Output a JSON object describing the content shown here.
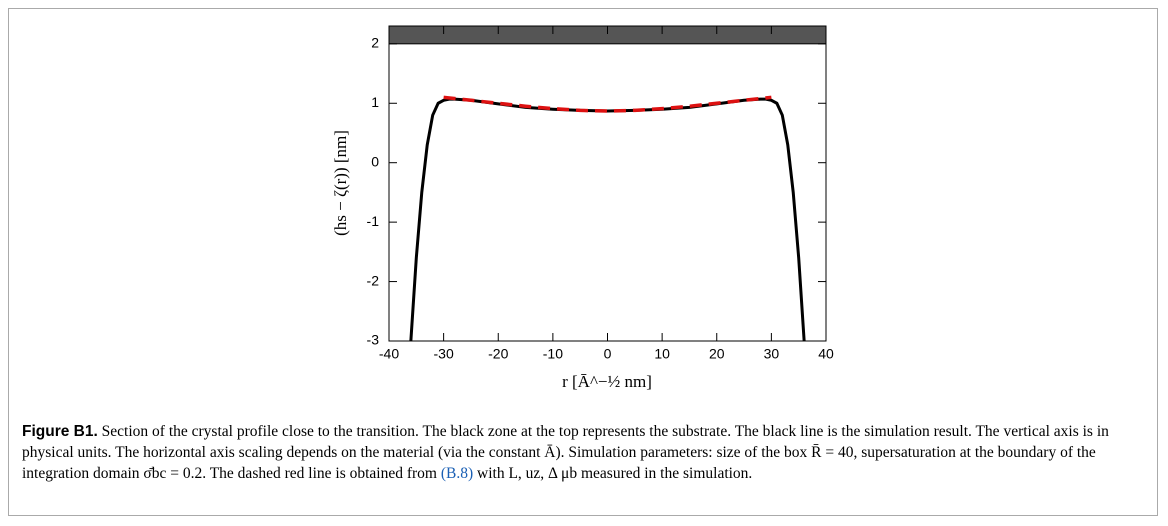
{
  "chart_data": {
    "type": "line",
    "ylabel": "(hs − ζ(r)) [nm]",
    "xlabel": "r [Ā^−½ nm]",
    "xlim": [
      -40,
      40
    ],
    "ylim": [
      -3,
      2.3
    ],
    "xticks": [
      -40,
      -30,
      -20,
      -10,
      0,
      10,
      20,
      30,
      40
    ],
    "yticks": [
      -3,
      -2,
      -1,
      0,
      1,
      2
    ],
    "band": {
      "from": 2,
      "color": "#555555"
    },
    "series": [
      {
        "color": "#000000",
        "dash": false,
        "x": [
          -36,
          -35,
          -34,
          -33,
          -32,
          -31,
          -30,
          -29,
          -28,
          -25,
          -20,
          -15,
          -10,
          -5,
          0,
          5,
          10,
          15,
          20,
          25,
          28,
          29,
          30,
          31,
          32,
          33,
          34,
          35,
          36
        ],
        "values": [
          -3,
          -1.6,
          -0.5,
          0.3,
          0.8,
          1.0,
          1.05,
          1.07,
          1.07,
          1.05,
          0.99,
          0.93,
          0.9,
          0.88,
          0.87,
          0.88,
          0.9,
          0.93,
          0.99,
          1.05,
          1.07,
          1.07,
          1.05,
          1.0,
          0.8,
          0.3,
          -0.5,
          -1.6,
          -3
        ]
      },
      {
        "color": "#dd1111",
        "dash": true,
        "x": [
          -30,
          -25,
          -20,
          -15,
          -10,
          -5,
          0,
          5,
          10,
          15,
          20,
          25,
          30
        ],
        "values": [
          1.1,
          1.05,
          1.0,
          0.95,
          0.91,
          0.88,
          0.87,
          0.88,
          0.91,
          0.95,
          1.0,
          1.05,
          1.1
        ]
      }
    ]
  },
  "caption": {
    "label": "Figure B1.",
    "text1": " Section of the crystal profile close to the transition. The black zone at the top represents the substrate. The black line is the simulation result. The vertical axis is in physical units. The horizontal axis scaling depends on the material (via the constant Ā). Simulation parameters: size of the box R̄ = 40, supersaturation at the boundary of the integration domain σ̄bc = 0.2. The dashed red line is obtained from ",
    "ref": "(B.8)",
    "text2": " with L, uz, Δ μb measured in the simulation."
  }
}
